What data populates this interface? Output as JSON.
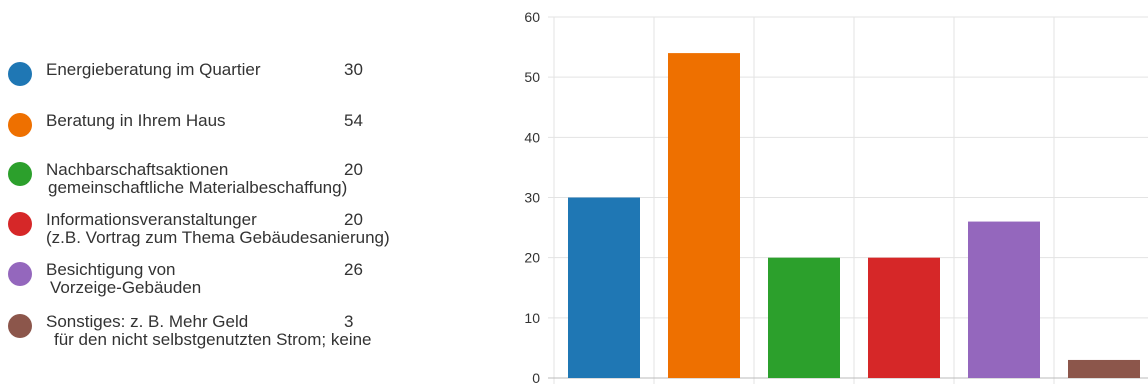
{
  "chart_data": {
    "type": "bar",
    "title": "",
    "xlabel": "",
    "ylabel": "",
    "ylim": [
      0,
      60
    ],
    "yticks": [
      0,
      10,
      20,
      30,
      40,
      50,
      60
    ],
    "grid": true,
    "legend_position": "left",
    "categories": [
      "Energieberatung im Quartier",
      "Beratung in Ihrem Haus",
      "Nachbarschaftsaktionen",
      "Informationsveranstaltunger",
      "Besichtigung von",
      "Sonstiges: z. B. Mehr Geld"
    ],
    "values": [
      30,
      54,
      20,
      20,
      26,
      3
    ],
    "colors": [
      "#1f77b4",
      "#ee7000",
      "#2ca02c",
      "#d62728",
      "#9467bd",
      "#8c564b"
    ]
  },
  "legend": {
    "items": [
      {
        "label": "Energieberatung im Quartier",
        "count": "30",
        "sub": ""
      },
      {
        "label": "Beratung in Ihrem Haus",
        "count": "54",
        "sub": ""
      },
      {
        "label": "Nachbarschaftsaktionen",
        "count": "20",
        "sub": "gemeinschaftliche Materialbeschaffung)"
      },
      {
        "label": "Informationsveranstaltunger",
        "count": "20",
        "sub": "(z.B. Vortrag zum Thema Gebäudesanierung)"
      },
      {
        "label": "Besichtigung von",
        "count": "26",
        "sub": "Vorzeige-Gebäuden"
      },
      {
        "label": "Sonstiges: z. B. Mehr Geld",
        "count": "3",
        "sub": "für den nicht selbstgenutzten Strom; keine"
      }
    ]
  }
}
